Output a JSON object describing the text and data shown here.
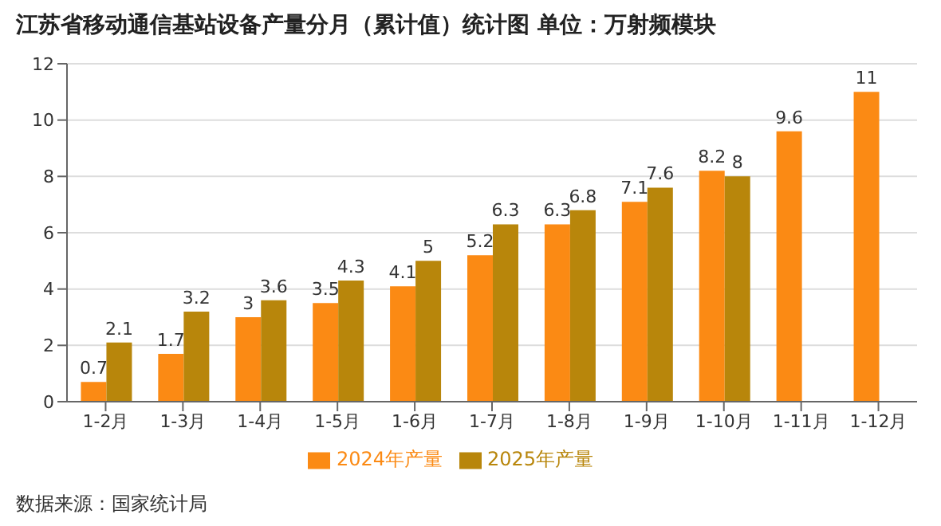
{
  "chart_data": {
    "type": "bar",
    "title": "江苏省移动通信基站设备产量分月（累计值）统计图 单位：万射频模块",
    "categories": [
      "1-2月",
      "1-3月",
      "1-4月",
      "1-5月",
      "1-6月",
      "1-7月",
      "1-8月",
      "1-9月",
      "1-10月",
      "1-11月",
      "1-12月"
    ],
    "series": [
      {
        "name": "2024年产量",
        "color": "#fb8a14",
        "values": [
          0.7,
          1.7,
          3,
          3.5,
          4.1,
          5.2,
          6.3,
          7.1,
          8.2,
          9.6,
          11
        ]
      },
      {
        "name": "2025年产量",
        "color": "#b8860b",
        "values": [
          2.1,
          3.2,
          3.6,
          4.3,
          5,
          6.3,
          6.8,
          7.6,
          8,
          null,
          null
        ]
      }
    ],
    "ylim": [
      0,
      12
    ],
    "yticks": [
      0,
      2,
      4,
      6,
      8,
      10,
      12
    ],
    "grid": "y",
    "legend": "bottom",
    "data_labels": true,
    "annotations": [
      "数据来源：国家统计局"
    ]
  }
}
